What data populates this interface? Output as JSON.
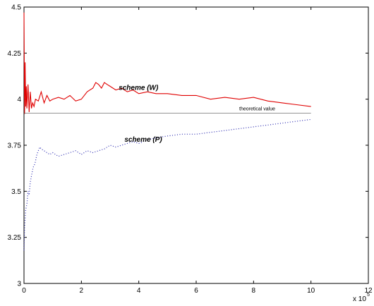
{
  "chart_data": {
    "type": "line",
    "title": "",
    "xlabel": "",
    "ylabel": "",
    "x_multiplier_label": {
      "base": "x 10",
      "exponent": "5"
    },
    "xlim": [
      0,
      12
    ],
    "ylim": [
      3,
      4.5
    ],
    "xticks": [
      0,
      2,
      4,
      6,
      8,
      10,
      12
    ],
    "yticks": [
      3,
      3.25,
      3.5,
      3.75,
      4,
      4.25,
      4.5
    ],
    "xtick_labels": [
      "0",
      "2",
      "4",
      "6",
      "8",
      "10",
      "12"
    ],
    "ytick_labels": [
      "3",
      "3.25",
      "3.5",
      "3.75",
      "4",
      "4.25",
      "4.5"
    ],
    "grid": false,
    "series": [
      {
        "name": "scheme (W)",
        "color": "#e00000",
        "style": "solid",
        "x": [
          0,
          0.02,
          0.04,
          0.06,
          0.08,
          0.1,
          0.14,
          0.18,
          0.22,
          0.26,
          0.3,
          0.35,
          0.4,
          0.5,
          0.6,
          0.7,
          0.8,
          0.9,
          1.0,
          1.2,
          1.4,
          1.6,
          1.8,
          2.0,
          2.1,
          2.2,
          2.3,
          2.4,
          2.5,
          2.6,
          2.7,
          2.8,
          2.9,
          3.0,
          3.2,
          3.4,
          3.6,
          3.8,
          4.0,
          4.3,
          4.6,
          5.0,
          5.5,
          6.0,
          6.5,
          7.0,
          7.5,
          8.0,
          8.5,
          9.0,
          9.5,
          10.0
        ],
        "y": [
          4.47,
          3.92,
          4.2,
          3.96,
          4.07,
          3.95,
          4.08,
          3.93,
          4.04,
          3.95,
          3.98,
          3.96,
          4.0,
          3.99,
          4.04,
          3.98,
          4.02,
          3.99,
          4.0,
          4.01,
          4.0,
          4.02,
          3.99,
          4.0,
          4.02,
          4.04,
          4.05,
          4.06,
          4.09,
          4.08,
          4.06,
          4.09,
          4.08,
          4.07,
          4.05,
          4.06,
          4.04,
          4.05,
          4.03,
          4.04,
          4.03,
          4.03,
          4.02,
          4.02,
          4.0,
          4.01,
          4.0,
          4.01,
          3.99,
          3.98,
          3.97,
          3.96
        ]
      },
      {
        "name": "scheme (P)",
        "color": "#2b2bb0",
        "style": "dotted",
        "x": [
          0,
          0.02,
          0.04,
          0.06,
          0.1,
          0.14,
          0.18,
          0.22,
          0.28,
          0.32,
          0.38,
          0.45,
          0.5,
          0.55,
          0.6,
          0.7,
          0.8,
          0.9,
          1.0,
          1.2,
          1.4,
          1.6,
          1.8,
          2.0,
          2.2,
          2.4,
          2.6,
          2.8,
          3.0,
          3.2,
          3.4,
          3.6,
          3.8,
          4.0,
          4.3,
          4.6,
          5.0,
          5.5,
          6.0,
          6.5,
          7.0,
          7.5,
          8.0,
          8.5,
          9.0,
          9.5,
          10.0
        ],
        "y": [
          3.18,
          3.3,
          3.35,
          3.4,
          3.43,
          3.5,
          3.48,
          3.55,
          3.6,
          3.63,
          3.65,
          3.7,
          3.72,
          3.74,
          3.73,
          3.72,
          3.71,
          3.7,
          3.71,
          3.69,
          3.7,
          3.71,
          3.72,
          3.7,
          3.72,
          3.71,
          3.72,
          3.73,
          3.75,
          3.74,
          3.75,
          3.76,
          3.77,
          3.76,
          3.78,
          3.79,
          3.8,
          3.81,
          3.81,
          3.82,
          3.83,
          3.84,
          3.85,
          3.86,
          3.87,
          3.88,
          3.89
        ]
      },
      {
        "name": "theoretical value",
        "color": "#555555",
        "style": "solid-thin",
        "x": [
          0,
          10
        ],
        "y": [
          3.925,
          3.925
        ]
      }
    ],
    "annotations": [
      {
        "text": "scheme (W)",
        "x": 3.3,
        "y": 4.05,
        "style": "ann"
      },
      {
        "text": "scheme (P)",
        "x": 3.5,
        "y": 3.77,
        "style": "ann"
      },
      {
        "text": "theoretical value",
        "x": 7.5,
        "y": 3.94,
        "style": "ann-small"
      }
    ]
  }
}
